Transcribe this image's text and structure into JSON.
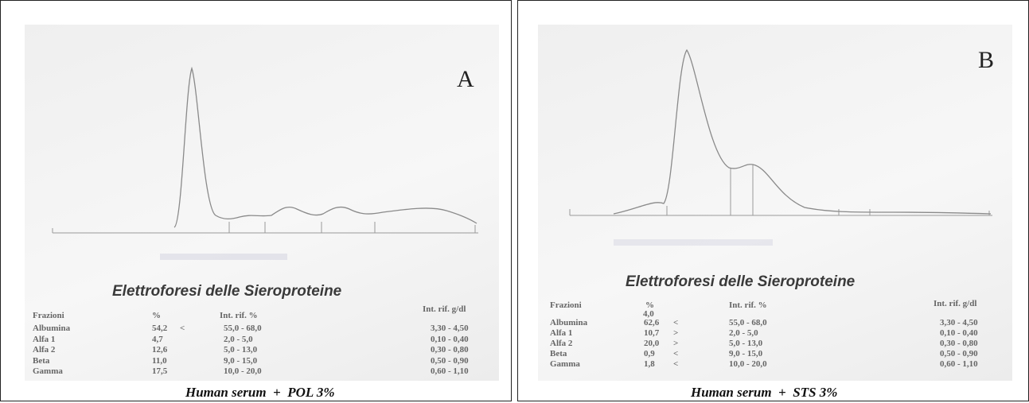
{
  "panels": [
    {
      "label": "A",
      "title": "Elettroforesi delle Sieroproteine",
      "headers": {
        "fraction": "Frazioni",
        "percent": "%",
        "ref_percent": "Int. rif. %",
        "ref_gdl": "Int. rif. g/dl"
      },
      "rows": [
        {
          "name": "Albumina",
          "percent": "54,2",
          "flag": "<",
          "ref_percent": "55,0 - 68,0",
          "ref_gdl": "3,30 - 4,50"
        },
        {
          "name": "Alfa 1",
          "percent": "4,7",
          "ref_percent": "2,0 - 5,0",
          "ref_gdl": "0,10 - 0,40"
        },
        {
          "name": "Alfa 2",
          "percent": "12,6",
          "ref_percent": "5,0 - 13,0",
          "ref_gdl": "0,30 - 0,80"
        },
        {
          "name": "Beta",
          "percent": "11,0",
          "ref_percent": "9,0 - 15,0",
          "ref_gdl": "0,50 - 0,90"
        },
        {
          "name": "Gamma",
          "percent": "17,5",
          "ref_percent": "10,0 - 20,0",
          "ref_gdl": "0,60 - 1,10"
        }
      ],
      "caption": "Human serum  +  POL 3%"
    },
    {
      "label": "B",
      "title": "Elettroforesi delle Sieroproteine",
      "headers": {
        "fraction": "Frazioni",
        "percent": "%",
        "percent_extra": "4,0",
        "ref_percent": "Int. rif. %",
        "ref_gdl": "Int. rif. g/dl"
      },
      "rows": [
        {
          "name": "Albumina",
          "percent": "62,6",
          "flag": "<",
          "ref_percent": "55,0 - 68,0",
          "ref_gdl": "3,30 - 4,50"
        },
        {
          "name": "Alfa 1",
          "percent": "10,7",
          "flag": ">",
          "ref_percent": "2,0 - 5,0",
          "ref_gdl": "0,10 - 0,40"
        },
        {
          "name": "Alfa 2",
          "percent": "20,0",
          "flag": ">",
          "ref_percent": "5,0 - 13,0",
          "ref_gdl": "0,30 - 0,80"
        },
        {
          "name": "Beta",
          "percent": "0,9",
          "flag": "<",
          "ref_percent": "9,0 - 15,0",
          "ref_gdl": "0,50 - 0,90"
        },
        {
          "name": "Gamma",
          "percent": "1,8",
          "flag": "<",
          "ref_percent": "10,0 - 20,0",
          "ref_gdl": "0,60 - 1,10"
        }
      ],
      "caption": "Human serum  +  STS 3%"
    }
  ]
}
